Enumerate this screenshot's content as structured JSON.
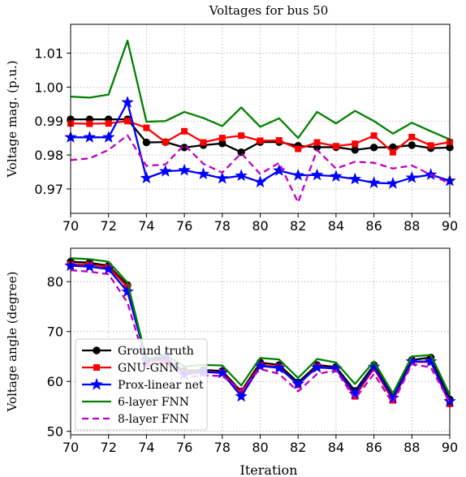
{
  "title": "Voltages for bus 50",
  "xlabel": "Iteration",
  "legend": [
    "Ground truth",
    "GNU-GNN",
    "Prox-linear net",
    "6-layer FNN",
    "8-layer FNN"
  ],
  "chart_data": [
    {
      "type": "line",
      "title": "Voltages for bus 50",
      "xlabel": "",
      "ylabel": "Voltage mag. (p.u.)",
      "xlim": [
        70,
        90
      ],
      "ylim": [
        0.9628,
        1.0185
      ],
      "xticks": [
        "70",
        "72",
        "74",
        "76",
        "78",
        "80",
        "82",
        "84",
        "86",
        "88",
        "90"
      ],
      "yticks": [
        "0.97",
        "0.98",
        "0.99",
        "1.00",
        "1.01"
      ],
      "ytick_values": [
        0.97,
        0.98,
        0.99,
        1.0,
        1.01
      ],
      "grid": true,
      "x": [
        70,
        71,
        72,
        73,
        74,
        75,
        76,
        77,
        78,
        79,
        80,
        81,
        82,
        83,
        84,
        85,
        86,
        87,
        88,
        89,
        90
      ],
      "series": [
        {
          "name": "Ground truth",
          "color": "#000000",
          "marker": "circle",
          "dash": "solid",
          "values": [
            0.9905,
            0.9905,
            0.9905,
            0.9905,
            0.9837,
            0.9838,
            0.9822,
            0.9829,
            0.9834,
            0.9808,
            0.9838,
            0.9838,
            0.9827,
            0.9823,
            0.9823,
            0.9815,
            0.9822,
            0.9823,
            0.9829,
            0.982,
            0.9822
          ]
        },
        {
          "name": "GNU-GNN",
          "color": "#ff0000",
          "marker": "square",
          "dash": "solid",
          "values": [
            0.9893,
            0.9892,
            0.9893,
            0.99,
            0.988,
            0.9838,
            0.987,
            0.9837,
            0.985,
            0.9857,
            0.9842,
            0.9843,
            0.9818,
            0.9837,
            0.9826,
            0.9833,
            0.9857,
            0.9808,
            0.9853,
            0.9828,
            0.9838
          ]
        },
        {
          "name": "Prox-linear net",
          "color": "#0000ff",
          "marker": "star",
          "dash": "solid",
          "values": [
            0.9852,
            0.9852,
            0.9852,
            0.9955,
            0.9732,
            0.9752,
            0.9755,
            0.9744,
            0.9731,
            0.9739,
            0.972,
            0.9754,
            0.974,
            0.9741,
            0.9737,
            0.9729,
            0.9718,
            0.9716,
            0.9733,
            0.9742,
            0.9724
          ]
        },
        {
          "name": "6-layer FNN",
          "color": "#008000",
          "marker": "none",
          "dash": "solid",
          "values": [
            0.9972,
            0.9969,
            0.9978,
            1.0137,
            0.9898,
            0.99,
            0.9927,
            0.9909,
            0.9885,
            0.994,
            0.9883,
            0.9908,
            0.985,
            0.9927,
            0.9893,
            0.993,
            0.99,
            0.9863,
            0.9895,
            0.987,
            0.9846
          ]
        },
        {
          "name": "8-layer FNN",
          "color": "#bf00bf",
          "marker": "none",
          "dash": "dashed",
          "values": [
            0.9785,
            0.979,
            0.9815,
            0.9858,
            0.9768,
            0.9772,
            0.983,
            0.9774,
            0.9748,
            0.9805,
            0.9744,
            0.9777,
            0.966,
            0.9815,
            0.976,
            0.978,
            0.9777,
            0.976,
            0.9769,
            0.9742,
            0.9716
          ]
        }
      ]
    },
    {
      "type": "line",
      "title": "",
      "xlabel": "Iteration",
      "ylabel": "Voltage angle (degree)",
      "xlim": [
        70,
        90
      ],
      "ylim": [
        49.3,
        86.7
      ],
      "xticks": [
        "70",
        "72",
        "74",
        "76",
        "78",
        "80",
        "82",
        "84",
        "86",
        "88",
        "90"
      ],
      "yticks": [
        "50",
        "60",
        "70",
        "80"
      ],
      "ytick_values": [
        50,
        60,
        70,
        80
      ],
      "grid": true,
      "legend_position": "lower-left",
      "x": [
        70,
        71,
        72,
        73,
        74,
        75,
        76,
        77,
        78,
        79,
        80,
        81,
        82,
        83,
        84,
        85,
        86,
        87,
        88,
        89,
        90
      ],
      "series": [
        {
          "name": "Ground truth",
          "color": "#000000",
          "marker": "circle",
          "dash": "solid",
          "values": [
            84.0,
            83.8,
            83.2,
            79.3,
            64.2,
            64.5,
            62.1,
            62.3,
            62.1,
            58.0,
            63.8,
            63.3,
            59.8,
            63.3,
            62.9,
            58.1,
            63.3,
            56.9,
            64.3,
            64.8,
            56.4
          ]
        },
        {
          "name": "GNU-GNN",
          "color": "#ff0000",
          "marker": "square",
          "dash": "solid",
          "values": [
            83.5,
            83.4,
            82.9,
            78.9,
            64.0,
            64.3,
            61.8,
            62.0,
            61.8,
            57.6,
            63.3,
            62.9,
            59.3,
            63.0,
            62.5,
            57.0,
            62.6,
            56.2,
            63.9,
            63.9,
            55.5
          ]
        },
        {
          "name": "Prox-linear net",
          "color": "#0000ff",
          "marker": "star",
          "dash": "solid",
          "values": [
            83.2,
            83.0,
            82.5,
            78.0,
            64.3,
            65.0,
            61.4,
            61.9,
            61.7,
            57.0,
            63.1,
            62.7,
            59.5,
            62.8,
            62.6,
            57.5,
            62.9,
            56.7,
            64.0,
            64.0,
            56.0
          ]
        },
        {
          "name": "6-layer FNN",
          "color": "#008000",
          "marker": "none",
          "dash": "solid",
          "values": [
            84.7,
            84.5,
            84.0,
            79.8,
            64.5,
            65.3,
            63.0,
            63.3,
            63.2,
            59.2,
            64.7,
            64.4,
            60.7,
            64.5,
            63.8,
            59.5,
            64.0,
            57.6,
            65.0,
            65.3,
            57.3
          ]
        },
        {
          "name": "8-layer FNN",
          "color": "#bf00bf",
          "marker": "none",
          "dash": "dashed",
          "values": [
            82.3,
            82.0,
            81.5,
            75.8,
            63.0,
            63.9,
            60.8,
            61.2,
            61.1,
            58.3,
            62.5,
            61.5,
            58.0,
            61.5,
            62.2,
            56.5,
            61.5,
            55.6,
            63.5,
            62.8,
            55.8
          ]
        }
      ]
    }
  ]
}
